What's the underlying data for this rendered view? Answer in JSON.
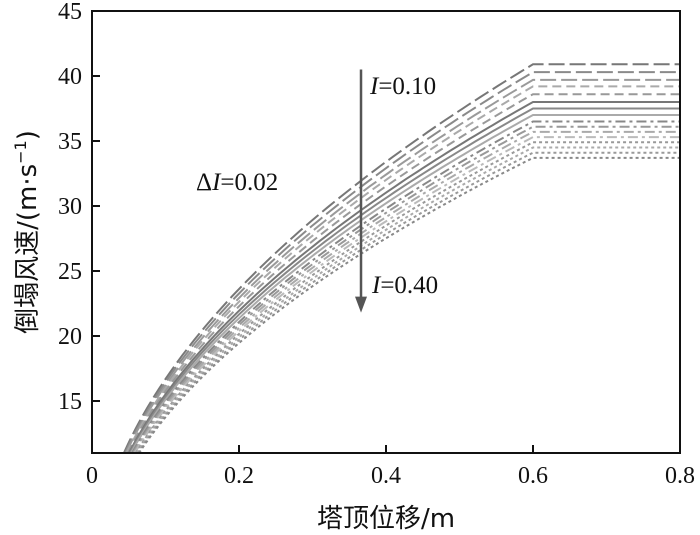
{
  "chart_data": {
    "type": "line",
    "xlabel": "塔顶位移/m",
    "ylabel": "倒塌风速/(m·s",
    "ylabel_sup": "−1",
    "ylabel_close": ")",
    "xlim": [
      0,
      0.8
    ],
    "ylim": [
      11,
      45
    ],
    "x_ticks": [
      0,
      0.2,
      0.4,
      0.6,
      0.8
    ],
    "x_tick_labels": [
      "0",
      "0.2",
      "0.4",
      "0.6",
      "0.8"
    ],
    "y_ticks": [
      15,
      20,
      25,
      30,
      35,
      40,
      45
    ],
    "y_tick_labels": [
      "15",
      "20",
      "25",
      "30",
      "35",
      "40",
      "45"
    ],
    "grid": false,
    "curve_model": "v = v_max * (x / 0.6)^0.5 for x <= 0.6, constant v_max for 0.6 < x <= 0.8",
    "series": [
      {
        "I": 0.1,
        "v_max": 40.9,
        "dash": "long-dash",
        "gray": "#777777"
      },
      {
        "I": 0.12,
        "v_max": 40.3,
        "dash": "long-dash",
        "gray": "#8a8a8a"
      },
      {
        "I": 0.14,
        "v_max": 39.7,
        "dash": "long-dash",
        "gray": "#9a9a9a"
      },
      {
        "I": 0.16,
        "v_max": 39.2,
        "dash": "dash",
        "gray": "#aaaaaa"
      },
      {
        "I": 0.18,
        "v_max": 38.6,
        "dash": "dash",
        "gray": "#999999"
      },
      {
        "I": 0.2,
        "v_max": 38.0,
        "dash": "solid",
        "gray": "#777777"
      },
      {
        "I": 0.22,
        "v_max": 37.5,
        "dash": "solid",
        "gray": "#888888"
      },
      {
        "I": 0.24,
        "v_max": 37.0,
        "dash": "solid",
        "gray": "#aaaaaa"
      },
      {
        "I": 0.26,
        "v_max": 36.5,
        "dash": "dash-dot",
        "gray": "#888888"
      },
      {
        "I": 0.28,
        "v_max": 36.1,
        "dash": "dash-dot",
        "gray": "#999999"
      },
      {
        "I": 0.3,
        "v_max": 35.7,
        "dash": "dash-dot",
        "gray": "#aaaaaa"
      },
      {
        "I": 0.32,
        "v_max": 35.3,
        "dash": "dash-dot",
        "gray": "#bbbbbb"
      },
      {
        "I": 0.34,
        "v_max": 34.9,
        "dash": "dot",
        "gray": "#999999"
      },
      {
        "I": 0.36,
        "v_max": 34.5,
        "dash": "dot",
        "gray": "#aaaaaa"
      },
      {
        "I": 0.38,
        "v_max": 34.1,
        "dash": "dot",
        "gray": "#999999"
      },
      {
        "I": 0.4,
        "v_max": 33.7,
        "dash": "dot",
        "gray": "#888888"
      }
    ],
    "annotations": {
      "top_label_italic": "I",
      "top_label_rest": "=0.10",
      "delta_label_symbol": "Δ",
      "delta_label_italic": "I",
      "delta_label_rest": "=0.02",
      "bottom_label_italic": "I",
      "bottom_label_rest": "=0.40",
      "arrow": {
        "x": 0.366,
        "y_from": 40.5,
        "y_to": 21.8
      }
    }
  }
}
